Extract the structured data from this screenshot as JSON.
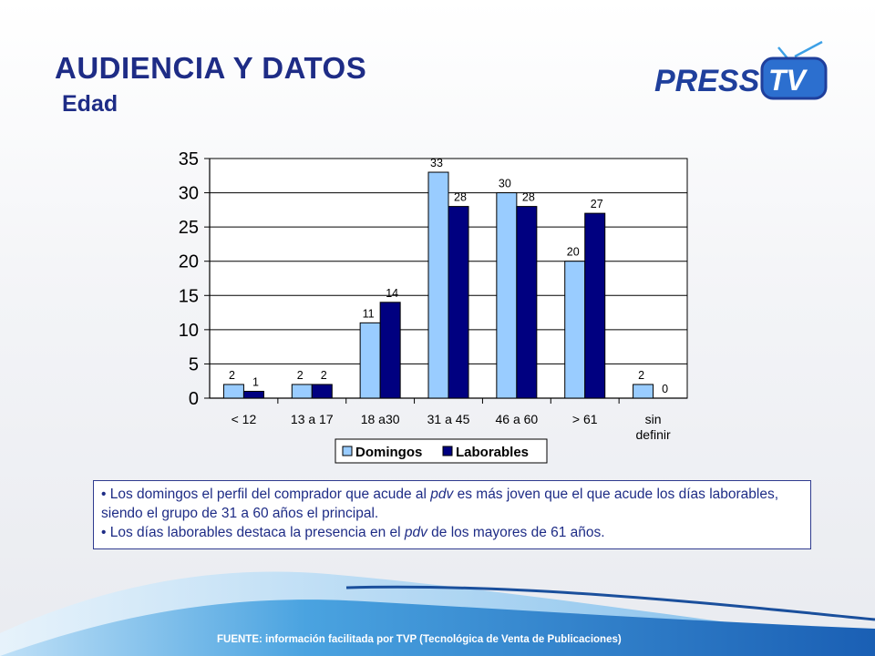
{
  "header": {
    "title": "AUDIENCIA Y DATOS",
    "subtitle": "Edad"
  },
  "logo": {
    "text": "PRESS",
    "tv_text": "TV"
  },
  "colors": {
    "title": "#1e2c86",
    "domingos": "#99ccff",
    "laborables": "#000080",
    "logo_blue": "#1f3f9c",
    "logo_accent": "#3da0e6"
  },
  "chart_data": {
    "type": "bar",
    "categories": [
      "< 12",
      "13 a 17",
      "18 a30",
      "31 a 45",
      "46 a 60",
      "> 61",
      "sin definir"
    ],
    "category_lines": [
      [
        "< 12"
      ],
      [
        "13 a 17"
      ],
      [
        "18 a30"
      ],
      [
        "31 a 45"
      ],
      [
        "46 a 60"
      ],
      [
        "> 61"
      ],
      [
        "sin",
        "definir"
      ]
    ],
    "series": [
      {
        "name": "Domingos",
        "values": [
          2,
          2,
          11,
          33,
          30,
          20,
          2
        ]
      },
      {
        "name": "Laborables",
        "values": [
          1,
          2,
          14,
          28,
          28,
          27,
          0
        ]
      }
    ],
    "ylim": [
      0,
      35
    ],
    "yticks": [
      0,
      5,
      10,
      15,
      20,
      25,
      30,
      35
    ],
    "grid": true,
    "legend": "bottom"
  },
  "notes": [
    {
      "bullet": "•",
      "parts": [
        {
          "text": " Los domingos el perfil del comprador que acude al ",
          "italic": false
        },
        {
          "text": "pdv",
          "italic": true
        },
        {
          "text": " es más joven que el que acude los días laborables, siendo el grupo de 31 a 60 años el principal.",
          "italic": false
        }
      ]
    },
    {
      "bullet": "•",
      "parts": [
        {
          "text": " Los días laborables destaca la presencia en el ",
          "italic": false
        },
        {
          "text": "pdv",
          "italic": true
        },
        {
          "text": " de los mayores de 61 años.",
          "italic": false
        }
      ]
    }
  ],
  "footer": {
    "source": "FUENTE:  información facilitada por TVP (Tecnológica de Venta de Publicaciones)"
  }
}
